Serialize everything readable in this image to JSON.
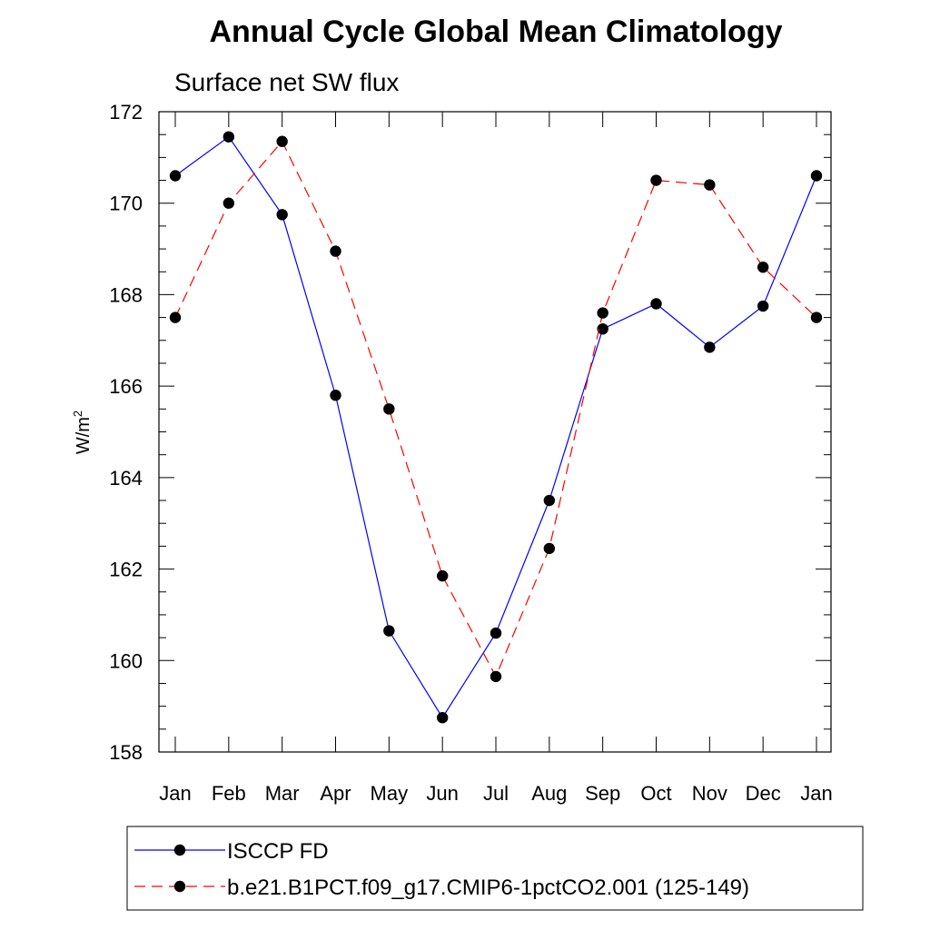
{
  "chart_data": {
    "type": "line",
    "title": "Annual Cycle Global Mean Climatology",
    "subtitle": "Surface net SW flux",
    "ylabel": "W/m",
    "ylabel_superscript": "2",
    "xlabel": "",
    "categories": [
      "Jan",
      "Feb",
      "Mar",
      "Apr",
      "May",
      "Jun",
      "Jul",
      "Aug",
      "Sep",
      "Oct",
      "Nov",
      "Dec",
      "Jan"
    ],
    "ylim": [
      158,
      172
    ],
    "yticks": [
      158,
      160,
      162,
      164,
      166,
      168,
      170,
      172
    ],
    "series": [
      {
        "name": "ISCCP FD",
        "color": "#0000ff",
        "dash": "solid",
        "values": [
          170.6,
          171.45,
          169.75,
          165.8,
          160.65,
          158.75,
          160.6,
          163.5,
          167.25,
          167.8,
          166.85,
          167.75,
          170.6
        ]
      },
      {
        "name": "b.e21.B1PCT.f09_g17.CMIP6-1pctCO2.001 (125-149)",
        "color": "#ff0000",
        "dash": "dashed",
        "values": [
          167.5,
          170.0,
          171.35,
          168.95,
          165.5,
          161.85,
          159.65,
          162.45,
          167.6,
          170.5,
          170.4,
          168.6,
          167.5
        ]
      }
    ],
    "legend_position": "bottom-left"
  }
}
